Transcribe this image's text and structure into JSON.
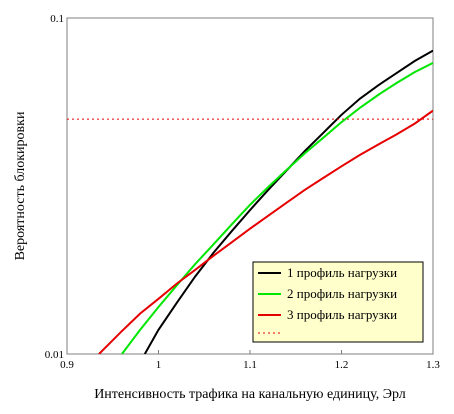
{
  "chart_data": {
    "type": "line",
    "title": "",
    "xlabel": "Интенсивность трафика на канальную единицу, Эрл",
    "ylabel": "Вероятность блокировки",
    "xlim": [
      0.9,
      1.3
    ],
    "ylim": [
      0.01,
      0.1
    ],
    "yscale": "log",
    "grid": false,
    "legend_position": "bottom-right",
    "x_ticks": [
      "0.9",
      "1",
      "1.1",
      "1.2",
      "1.3"
    ],
    "y_ticks": [
      "0.01",
      "0.1"
    ],
    "series": [
      {
        "name": "1 профиль нагрузки",
        "color": "#000000",
        "style": "solid",
        "points": [
          [
            0.985,
            0.01
          ],
          [
            1.0,
            0.0118
          ],
          [
            1.02,
            0.0142
          ],
          [
            1.04,
            0.017
          ],
          [
            1.06,
            0.02
          ],
          [
            1.08,
            0.0232
          ],
          [
            1.1,
            0.0268
          ],
          [
            1.12,
            0.0308
          ],
          [
            1.14,
            0.0352
          ],
          [
            1.16,
            0.0402
          ],
          [
            1.18,
            0.0455
          ],
          [
            1.2,
            0.0515
          ],
          [
            1.22,
            0.0575
          ],
          [
            1.24,
            0.063
          ],
          [
            1.26,
            0.0685
          ],
          [
            1.28,
            0.0745
          ],
          [
            1.3,
            0.08
          ]
        ]
      },
      {
        "name": "2 профиль нагрузки",
        "color": "#00e600",
        "style": "solid",
        "points": [
          [
            0.96,
            0.01
          ],
          [
            0.98,
            0.0118
          ],
          [
            1.0,
            0.0138
          ],
          [
            1.02,
            0.016
          ],
          [
            1.04,
            0.0185
          ],
          [
            1.06,
            0.0212
          ],
          [
            1.08,
            0.0243
          ],
          [
            1.1,
            0.0278
          ],
          [
            1.12,
            0.0314
          ],
          [
            1.14,
            0.0353
          ],
          [
            1.16,
            0.0396
          ],
          [
            1.18,
            0.044
          ],
          [
            1.2,
            0.049
          ],
          [
            1.22,
            0.054
          ],
          [
            1.24,
            0.059
          ],
          [
            1.26,
            0.064
          ],
          [
            1.28,
            0.069
          ],
          [
            1.3,
            0.0735
          ]
        ]
      },
      {
        "name": "3 профиль нагрузки",
        "color": "#e60000",
        "style": "solid",
        "points": [
          [
            0.935,
            0.01
          ],
          [
            0.96,
            0.0117
          ],
          [
            0.98,
            0.0132
          ],
          [
            1.0,
            0.0146
          ],
          [
            1.02,
            0.0162
          ],
          [
            1.04,
            0.0178
          ],
          [
            1.06,
            0.0196
          ],
          [
            1.08,
            0.0215
          ],
          [
            1.1,
            0.0236
          ],
          [
            1.12,
            0.0258
          ],
          [
            1.14,
            0.0282
          ],
          [
            1.16,
            0.0308
          ],
          [
            1.18,
            0.0334
          ],
          [
            1.2,
            0.0362
          ],
          [
            1.22,
            0.0391
          ],
          [
            1.24,
            0.042
          ],
          [
            1.26,
            0.045
          ],
          [
            1.28,
            0.0485
          ],
          [
            1.3,
            0.053
          ]
        ]
      },
      {
        "name": "",
        "color": "#e60000",
        "style": "dotted",
        "points": [
          [
            0.9,
            0.05
          ],
          [
            1.3,
            0.05
          ]
        ]
      }
    ]
  }
}
